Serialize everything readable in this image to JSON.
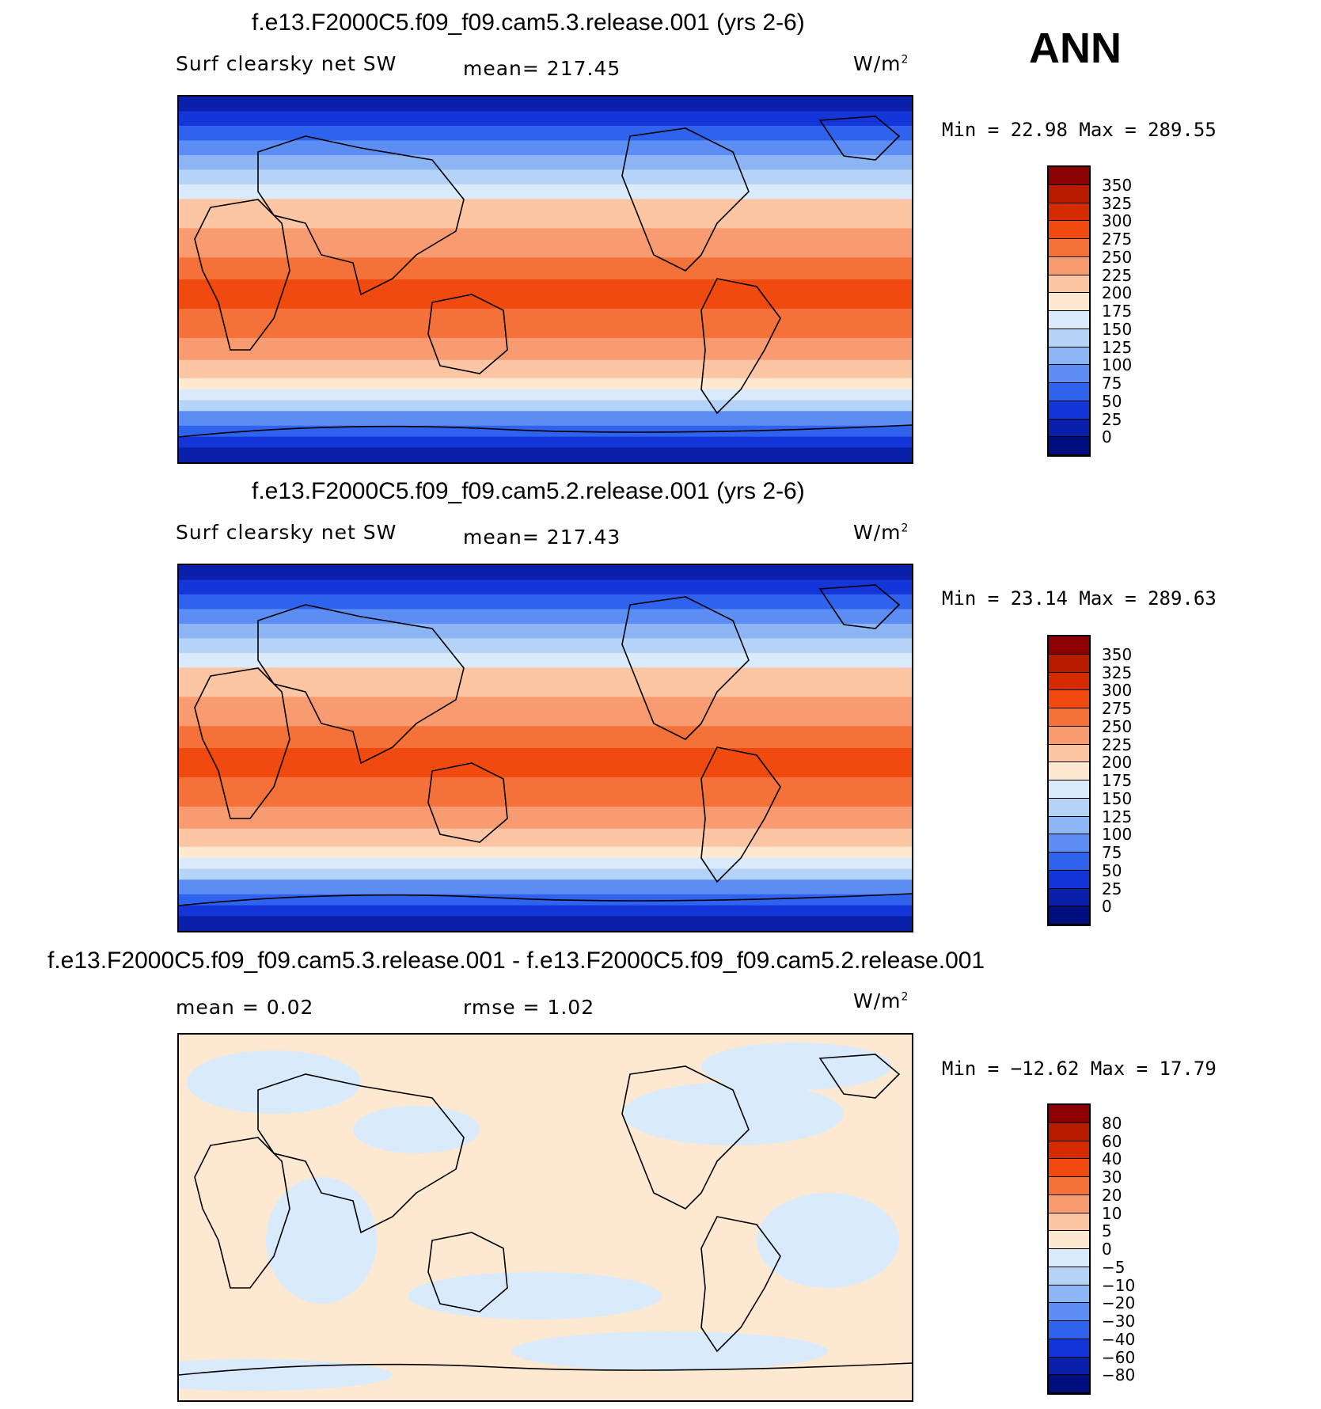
{
  "season": "ANN",
  "panels": [
    {
      "title": "f.e13.F2000C5.f09_f09.cam5.3.release.001 (yrs 2-6)",
      "left_label": "Surf clearsky net SW",
      "center_label": "mean= 217.45",
      "units": "W/m",
      "units_sup": "2",
      "minmax": "Min =   22.98 Max =  289.55",
      "colorbar_labels": [
        "350",
        "325",
        "300",
        "275",
        "250",
        "225",
        "200",
        "175",
        "150",
        "125",
        "100",
        "75",
        "50",
        "25",
        "0"
      ],
      "colorbar_colors": [
        "#8b0000",
        "#b71c00",
        "#d62a00",
        "#f04a10",
        "#f5713a",
        "#f99b70",
        "#fcc6a4",
        "#fde8d2",
        "#d9ebfb",
        "#b5d3f7",
        "#8db5f4",
        "#5b8df2",
        "#2f63ee",
        "#1436d9",
        "#0a1faa",
        "#000f80"
      ]
    },
    {
      "title": "f.e13.F2000C5.f09_f09.cam5.2.release.001 (yrs 2-6)",
      "left_label": "Surf clearsky net SW",
      "center_label": "mean= 217.43",
      "units": "W/m",
      "units_sup": "2",
      "minmax": "Min =   23.14 Max =  289.63",
      "colorbar_labels": [
        "350",
        "325",
        "300",
        "275",
        "250",
        "225",
        "200",
        "175",
        "150",
        "125",
        "100",
        "75",
        "50",
        "25",
        "0"
      ],
      "colorbar_colors": [
        "#8b0000",
        "#b71c00",
        "#d62a00",
        "#f04a10",
        "#f5713a",
        "#f99b70",
        "#fcc6a4",
        "#fde8d2",
        "#d9ebfb",
        "#b5d3f7",
        "#8db5f4",
        "#5b8df2",
        "#2f63ee",
        "#1436d9",
        "#0a1faa",
        "#000f80"
      ]
    },
    {
      "title": "f.e13.F2000C5.f09_f09.cam5.3.release.001 - f.e13.F2000C5.f09_f09.cam5.2.release.001",
      "left_label": "mean =   0.02",
      "center_label": "rmse =   1.02",
      "units": "W/m",
      "units_sup": "2",
      "minmax": "Min = −12.62 Max =   17.79",
      "colorbar_labels": [
        "80",
        "60",
        "40",
        "30",
        "20",
        "10",
        "5",
        "0",
        "−5",
        "−10",
        "−20",
        "−30",
        "−40",
        "−60",
        "−80"
      ],
      "colorbar_colors": [
        "#8b0000",
        "#b71c00",
        "#d62a00",
        "#f04a10",
        "#f5713a",
        "#f99b70",
        "#fcc6a4",
        "#fde8d2",
        "#d9ebfb",
        "#b5d3f7",
        "#8db5f4",
        "#5b8df2",
        "#2f63ee",
        "#1436d9",
        "#0a1faa",
        "#000f80"
      ]
    }
  ]
}
